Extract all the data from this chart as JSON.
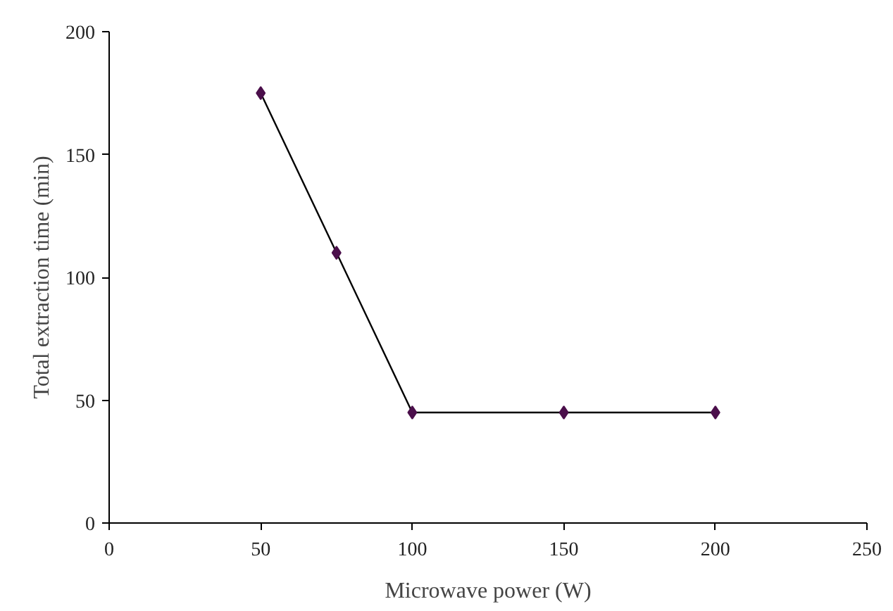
{
  "chart_data": {
    "type": "line",
    "xlabel": "Microwave power (W)",
    "ylabel": "Total extraction time (min)",
    "x": [
      50,
      75,
      100,
      150,
      200
    ],
    "series": [
      {
        "color": "#000000",
        "colors": [
          "#4b0f4b",
          "#4b0f4b",
          "#4b0f4b",
          "#4b0f4b",
          "#4b0f4b"
        ],
        "values": [
          175,
          110,
          45,
          45,
          45
        ]
      }
    ],
    "xlim": [
      0,
      250
    ],
    "ylim": [
      0,
      200
    ],
    "xticks": [
      0,
      50,
      100,
      150,
      200,
      250
    ],
    "yticks": [
      0,
      50,
      100,
      150,
      200
    ],
    "grid": false,
    "marker": "diamond",
    "line_style": "solid"
  }
}
